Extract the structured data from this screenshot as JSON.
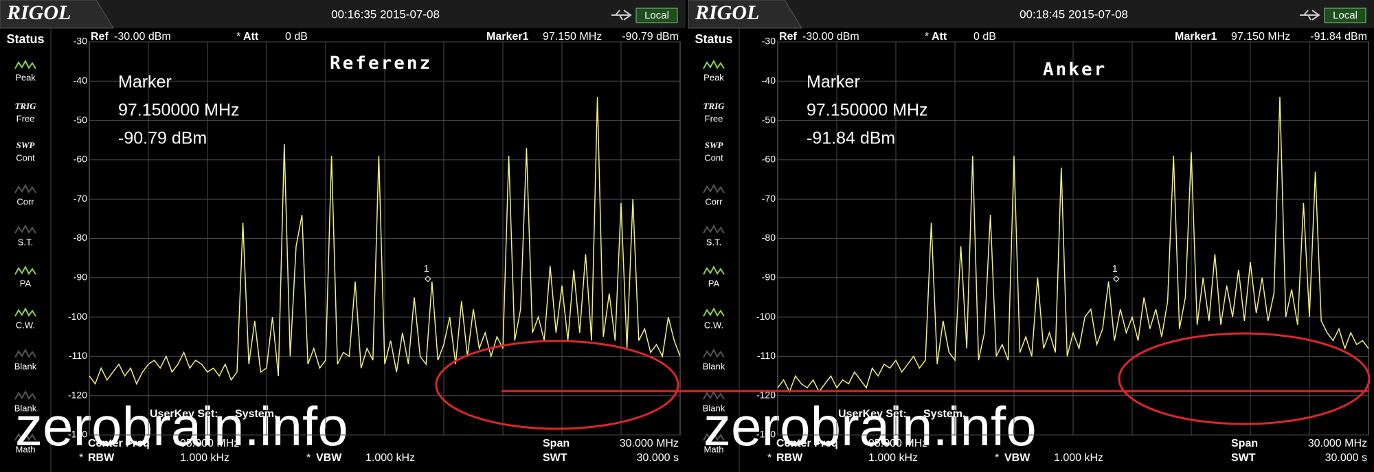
{
  "screens": [
    {
      "logo": "RIGOL",
      "timestamp": "00:16:35 2015-07-08",
      "local": "Local",
      "status": "Status",
      "buttons": [
        {
          "label": "Peak",
          "active": true
        },
        {
          "tag": "TRIG",
          "label": "Free",
          "active": true
        },
        {
          "tag": "SWP",
          "label": "Cont",
          "active": true
        },
        {
          "label": "Corr",
          "active": false
        },
        {
          "label": "S.T.",
          "active": false
        },
        {
          "label": "PA",
          "active": true
        },
        {
          "label": "C.W.",
          "active": true
        },
        {
          "label": "Blank",
          "active": false
        },
        {
          "label": "Blank",
          "active": false
        },
        {
          "label": "Math",
          "active": false
        }
      ],
      "ref_label": "Ref",
      "ref_value": "-30.00 dBm",
      "att_flag": "*",
      "att_label": "Att",
      "att_value": "0 dB",
      "marker_label": "Marker1",
      "marker_freq": "97.150 MHz",
      "marker_level": "-90.79 dBm",
      "readout": [
        "Marker",
        "97.150000 MHz",
        "-90.79 dBm"
      ],
      "overlay": "Referenz",
      "marker_id": "1",
      "userkey_label": "UserKey Set:",
      "userkey_value": "System,",
      "center_label": "Center Freq",
      "center_value": "95.000 MHz",
      "rbw_flag": "*",
      "rbw_label": "RBW",
      "rbw_value": "1.000 kHz",
      "vbw_flag": "*",
      "vbw_label": "VBW",
      "vbw_value": "1.000 kHz",
      "span_label": "Span",
      "span_value": "30.000 MHz",
      "swt_label": "SWT",
      "swt_value": "30.000 s",
      "watermark": "zerobrain.info",
      "ylim": [
        -130,
        -30
      ],
      "yticks": [
        -30,
        -40,
        -50,
        -60,
        -70,
        -80,
        -90,
        -100,
        -110,
        -120,
        -130
      ],
      "trace": {
        "color": "#f2f07c",
        "values": [
          -115,
          -117,
          -113,
          -116,
          -114,
          -112,
          -115,
          -113,
          -117,
          -114,
          -112,
          -111,
          -113,
          -110,
          -114,
          -112,
          -109,
          -113,
          -111,
          -112,
          -114,
          -113,
          -115,
          -112,
          -116,
          -114,
          -76,
          -112,
          -101,
          -114,
          -113,
          -100,
          -115,
          -56,
          -110,
          -82,
          -74,
          -112,
          -108,
          -113,
          -111,
          -59,
          -112,
          -109,
          -110,
          -91,
          -113,
          -108,
          -111,
          -59,
          -112,
          -106,
          -114,
          -104,
          -112,
          -95,
          -110,
          -112,
          -91,
          -111,
          -107,
          -100,
          -112,
          -96,
          -110,
          -98,
          -108,
          -104,
          -110,
          -105,
          -108,
          -59,
          -106,
          -98,
          -57,
          -104,
          -100,
          -106,
          -87,
          -104,
          -92,
          -106,
          -88,
          -104,
          -84,
          -106,
          -44,
          -105,
          -94,
          -106,
          -71,
          -108,
          -70,
          -106,
          -103,
          -109,
          -107,
          -110,
          -100,
          -106,
          -110
        ]
      }
    },
    {
      "logo": "RIGOL",
      "timestamp": "00:18:45 2015-07-08",
      "local": "Local",
      "status": "Status",
      "buttons": [
        {
          "label": "Peak",
          "active": true
        },
        {
          "tag": "TRIG",
          "label": "Free",
          "active": true
        },
        {
          "tag": "SWP",
          "label": "Cont",
          "active": true
        },
        {
          "label": "Corr",
          "active": false
        },
        {
          "label": "S.T.",
          "active": false
        },
        {
          "label": "PA",
          "active": true
        },
        {
          "label": "C.W.",
          "active": true
        },
        {
          "label": "Blank",
          "active": false
        },
        {
          "label": "Blank",
          "active": false
        },
        {
          "label": "Math",
          "active": false
        }
      ],
      "ref_label": "Ref",
      "ref_value": "-30.00 dBm",
      "att_flag": "*",
      "att_label": "Att",
      "att_value": "0 dB",
      "marker_label": "Marker1",
      "marker_freq": "97.150 MHz",
      "marker_level": "-91.84 dBm",
      "readout": [
        "Marker",
        "97.150000 MHz",
        "-91.84 dBm"
      ],
      "overlay": "Anker",
      "marker_id": "1",
      "userkey_label": "UserKey Set:",
      "userkey_value": "System,",
      "center_label": "Center Freq",
      "center_value": "95.000 MHz",
      "rbw_flag": "*",
      "rbw_label": "RBW",
      "rbw_value": "1.000 kHz",
      "vbw_flag": "*",
      "vbw_label": "VBW",
      "vbw_value": "1.000 kHz",
      "span_label": "Span",
      "span_value": "30.000 MHz",
      "swt_label": "SWT",
      "swt_value": "30.000 s",
      "watermark": "zerobrain.info",
      "ylim": [
        -130,
        -30
      ],
      "yticks": [
        -30,
        -40,
        -50,
        -60,
        -70,
        -80,
        -90,
        -100,
        -110,
        -120,
        -130
      ],
      "trace": {
        "color": "#f2f07c",
        "values": [
          -118,
          -116,
          -119,
          -115,
          -117,
          -118,
          -116,
          -119,
          -117,
          -115,
          -118,
          -116,
          -117,
          -114,
          -116,
          -118,
          -113,
          -115,
          -112,
          -113,
          -111,
          -114,
          -112,
          -110,
          -113,
          -111,
          -76,
          -112,
          -101,
          -109,
          -111,
          -82,
          -108,
          -59,
          -111,
          -104,
          -74,
          -110,
          -107,
          -111,
          -59,
          -109,
          -105,
          -110,
          -90,
          -108,
          -104,
          -109,
          -62,
          -110,
          -104,
          -108,
          -100,
          -98,
          -107,
          -103,
          -91,
          -106,
          -98,
          -104,
          -100,
          -106,
          -95,
          -103,
          -98,
          -105,
          -96,
          -59,
          -103,
          -95,
          -58,
          -102,
          -90,
          -101,
          -84,
          -102,
          -92,
          -100,
          -88,
          -101,
          -86,
          -99,
          -90,
          -101,
          -94,
          -44,
          -100,
          -93,
          -102,
          -71,
          -100,
          -63,
          -101,
          -104,
          -106,
          -103,
          -108,
          -104,
          -107,
          -106,
          -108
        ]
      }
    }
  ]
}
